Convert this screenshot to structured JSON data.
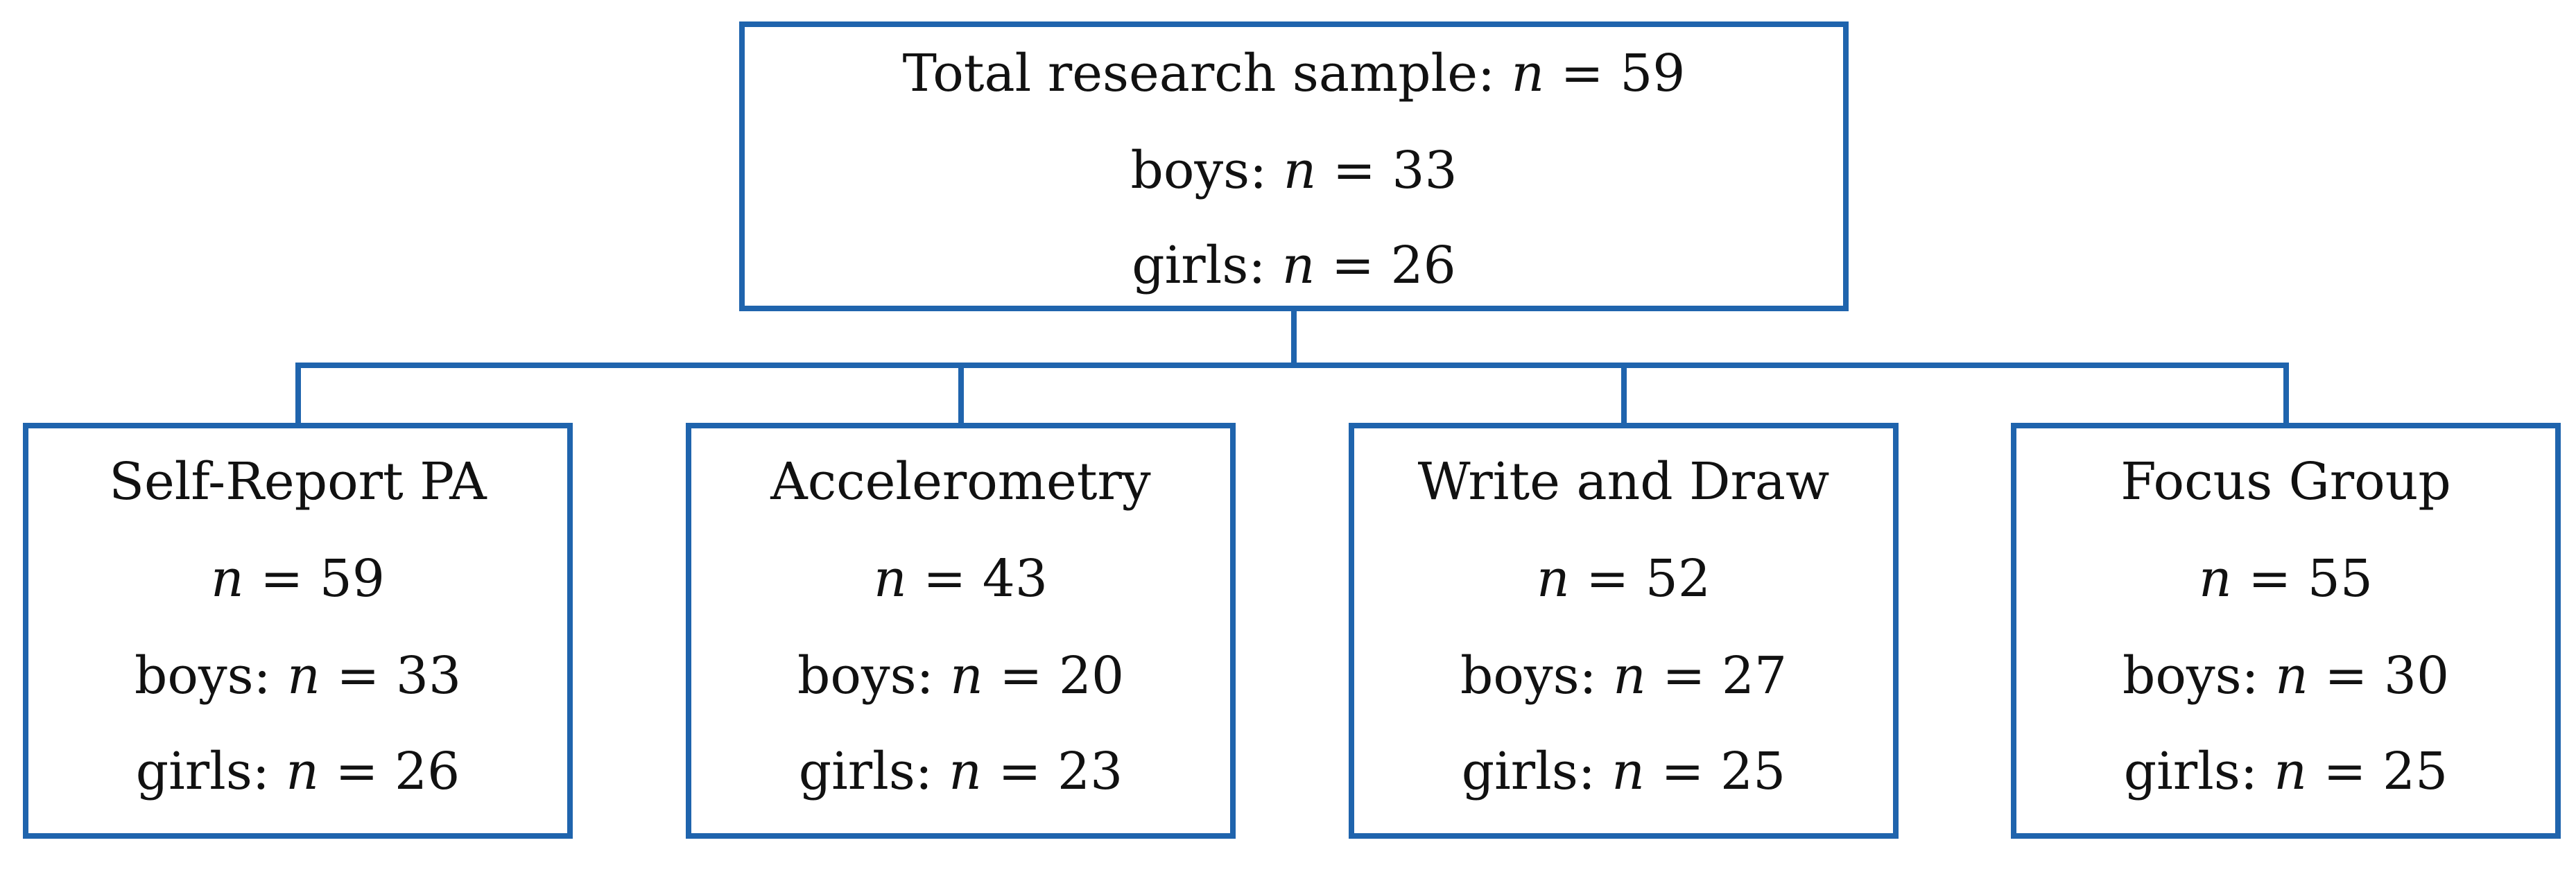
{
  "diagram": {
    "root": {
      "title": "Total research sample:",
      "n_symbol": "n",
      "eq": "=",
      "total": "59",
      "boys_label": "boys:",
      "boys": "33",
      "girls_label": "girls:",
      "girls": "26"
    },
    "methods": [
      {
        "name": "Self-Report PA",
        "total": "59",
        "boys": "33",
        "girls": "26"
      },
      {
        "name": "Accelerometry",
        "total": "43",
        "boys": "20",
        "girls": "23"
      },
      {
        "name": "Write and Draw",
        "total": "52",
        "boys": "27",
        "girls": "25"
      },
      {
        "name": "Focus Group",
        "total": "55",
        "boys": "30",
        "girls": "25"
      }
    ],
    "colors": {
      "border": "#1f64ad",
      "connector": "#1f64ad"
    }
  }
}
